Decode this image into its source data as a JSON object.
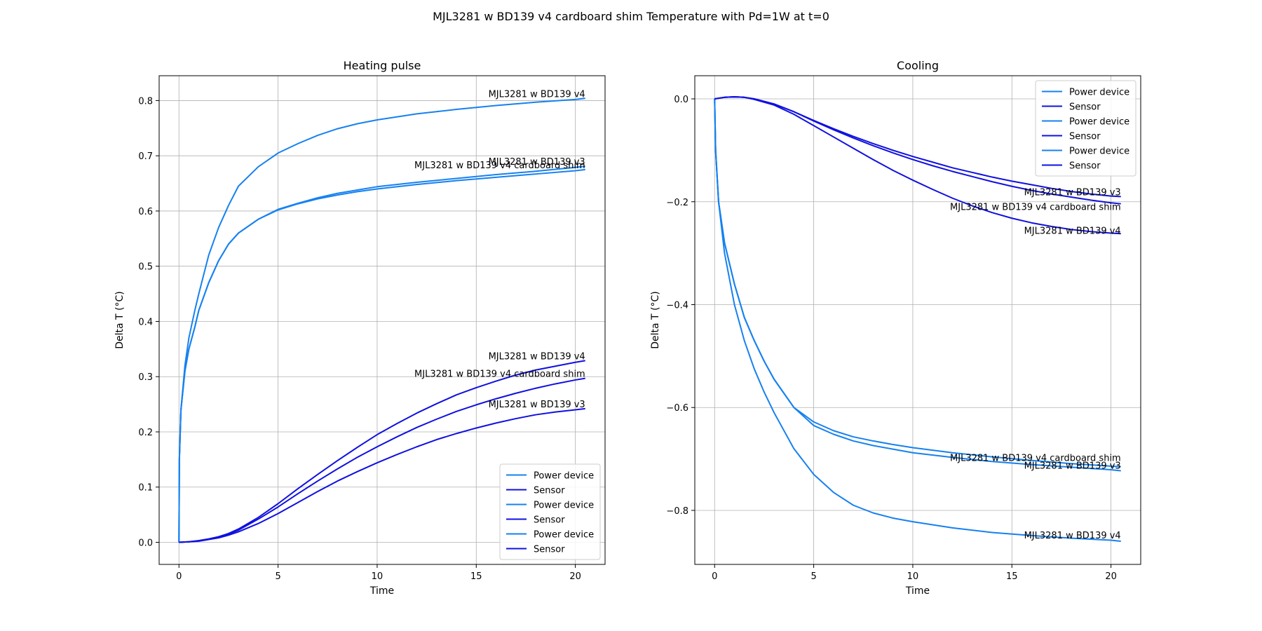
{
  "suptitle": "MJL3281 w BD139 v4 cardboard shim Temperature with Pd=1W at t=0",
  "colors": {
    "power_device": "#1681f0",
    "sensor": "#1010e0",
    "grid": "#b0b0b0"
  },
  "chart_data": [
    {
      "type": "line",
      "title": "Heating pulse",
      "xlabel": "Time",
      "ylabel": "Delta T (°C)",
      "xlim": [
        -1.0,
        21.5
      ],
      "ylim": [
        -0.04,
        0.845
      ],
      "xticks": [
        0,
        5,
        10,
        15,
        20
      ],
      "yticks": [
        0.0,
        0.1,
        0.2,
        0.3,
        0.4,
        0.5,
        0.6,
        0.7,
        0.8
      ],
      "ytick_labels": [
        "0.0",
        "0.1",
        "0.2",
        "0.3",
        "0.4",
        "0.5",
        "0.6",
        "0.7",
        "0.8"
      ],
      "grid": true,
      "legend": {
        "placement": "lower-right",
        "entries": [
          {
            "label": "Power device",
            "role": "power_device"
          },
          {
            "label": "Sensor",
            "role": "sensor"
          },
          {
            "label": "Power device",
            "role": "power_device"
          },
          {
            "label": "Sensor",
            "role": "sensor"
          },
          {
            "label": "Power device",
            "role": "power_device"
          },
          {
            "label": "Sensor",
            "role": "sensor"
          }
        ]
      },
      "series": [
        {
          "role": "power_device",
          "x": [
            0,
            0.02,
            0.1,
            0.3,
            0.5,
            0.8,
            1,
            1.5,
            2,
            2.5,
            3,
            4,
            5,
            6,
            7,
            8,
            9,
            10,
            12,
            14,
            16,
            18,
            20,
            20.5
          ],
          "y": [
            0,
            0.15,
            0.24,
            0.32,
            0.37,
            0.42,
            0.45,
            0.52,
            0.57,
            0.61,
            0.645,
            0.68,
            0.705,
            0.722,
            0.737,
            0.749,
            0.758,
            0.765,
            0.776,
            0.784,
            0.791,
            0.797,
            0.802,
            0.804
          ]
        },
        {
          "role": "power_device",
          "x": [
            0,
            0.02,
            0.1,
            0.3,
            0.5,
            0.8,
            1,
            1.5,
            2,
            2.5,
            3,
            4,
            5,
            6,
            7,
            8,
            9,
            10,
            12,
            14,
            16,
            18,
            20,
            20.5
          ],
          "y": [
            0,
            0.15,
            0.24,
            0.31,
            0.35,
            0.39,
            0.42,
            0.47,
            0.51,
            0.54,
            0.56,
            0.585,
            0.603,
            0.614,
            0.624,
            0.632,
            0.638,
            0.644,
            0.652,
            0.659,
            0.666,
            0.672,
            0.679,
            0.681
          ]
        },
        {
          "role": "power_device",
          "x": [
            0,
            0.02,
            0.1,
            0.3,
            0.5,
            0.8,
            1,
            1.5,
            2,
            2.5,
            3,
            4,
            5,
            6,
            7,
            8,
            9,
            10,
            12,
            14,
            16,
            18,
            20,
            20.5
          ],
          "y": [
            0,
            0.15,
            0.24,
            0.31,
            0.35,
            0.39,
            0.42,
            0.47,
            0.51,
            0.54,
            0.56,
            0.585,
            0.602,
            0.613,
            0.622,
            0.629,
            0.635,
            0.64,
            0.648,
            0.655,
            0.661,
            0.667,
            0.673,
            0.675
          ]
        },
        {
          "role": "sensor",
          "x": [
            0,
            0.5,
            1,
            1.5,
            2,
            2.5,
            3,
            4,
            5,
            6,
            7,
            8,
            9,
            10,
            11,
            12,
            13,
            14,
            15,
            16,
            17,
            18,
            19,
            20,
            20.5
          ],
          "y": [
            0,
            0.001,
            0.003,
            0.006,
            0.01,
            0.016,
            0.024,
            0.045,
            0.07,
            0.097,
            0.123,
            0.148,
            0.172,
            0.195,
            0.215,
            0.234,
            0.251,
            0.267,
            0.28,
            0.292,
            0.303,
            0.312,
            0.319,
            0.326,
            0.329
          ]
        },
        {
          "role": "sensor",
          "x": [
            0,
            0.5,
            1,
            1.5,
            2,
            2.5,
            3,
            4,
            5,
            6,
            7,
            8,
            9,
            10,
            11,
            12,
            13,
            14,
            15,
            16,
            17,
            18,
            19,
            20,
            20.5
          ],
          "y": [
            0,
            0.001,
            0.003,
            0.006,
            0.01,
            0.015,
            0.022,
            0.042,
            0.064,
            0.088,
            0.111,
            0.133,
            0.154,
            0.173,
            0.191,
            0.208,
            0.223,
            0.237,
            0.249,
            0.26,
            0.27,
            0.279,
            0.287,
            0.294,
            0.297
          ]
        },
        {
          "role": "sensor",
          "x": [
            0,
            0.5,
            1,
            1.5,
            2,
            2.5,
            3,
            4,
            5,
            6,
            7,
            8,
            9,
            10,
            11,
            12,
            13,
            14,
            15,
            16,
            17,
            18,
            19,
            20,
            20.5
          ],
          "y": [
            0,
            0.001,
            0.002,
            0.005,
            0.008,
            0.013,
            0.019,
            0.034,
            0.052,
            0.072,
            0.092,
            0.111,
            0.128,
            0.144,
            0.159,
            0.173,
            0.186,
            0.197,
            0.207,
            0.216,
            0.224,
            0.231,
            0.236,
            0.24,
            0.242
          ]
        }
      ],
      "annotations": [
        {
          "text": "MJL3281 w BD139 v4",
          "x": 20.5,
          "y": 0.804
        },
        {
          "text": "MJL3281 w BD139 v3",
          "x": 20.5,
          "y": 0.681
        },
        {
          "text": "MJL3281 w BD139 v4 cardboard shim",
          "x": 20.5,
          "y": 0.675
        },
        {
          "text": "MJL3281 w BD139 v4",
          "x": 20.5,
          "y": 0.329
        },
        {
          "text": "MJL3281 w BD139 v4 cardboard shim",
          "x": 20.5,
          "y": 0.297
        },
        {
          "text": "MJL3281 w BD139 v3",
          "x": 20.5,
          "y": 0.242
        }
      ]
    },
    {
      "type": "line",
      "title": "Cooling",
      "xlabel": "Time",
      "ylabel": "Delta T (°C)",
      "xlim": [
        -1.0,
        21.5
      ],
      "ylim": [
        -0.905,
        0.045
      ],
      "xticks": [
        0,
        5,
        10,
        15,
        20
      ],
      "yticks": [
        0.0,
        -0.2,
        -0.4,
        -0.6,
        -0.8
      ],
      "ytick_labels": [
        "0.0",
        "−0.2",
        "−0.4",
        "−0.6",
        "−0.8"
      ],
      "grid": true,
      "legend": {
        "placement": "upper-right",
        "entries": [
          {
            "label": "Power device",
            "role": "power_device"
          },
          {
            "label": "Sensor",
            "role": "sensor"
          },
          {
            "label": "Power device",
            "role": "power_device"
          },
          {
            "label": "Sensor",
            "role": "sensor"
          },
          {
            "label": "Power device",
            "role": "power_device"
          },
          {
            "label": "Sensor",
            "role": "sensor"
          }
        ]
      },
      "series": [
        {
          "role": "power_device",
          "x": [
            0,
            0.05,
            0.2,
            0.5,
            1,
            1.5,
            2,
            2.5,
            3,
            4,
            5,
            6,
            7,
            8,
            9,
            10,
            12,
            14,
            16,
            18,
            20,
            20.5
          ],
          "y": [
            0,
            -0.1,
            -0.2,
            -0.3,
            -0.4,
            -0.47,
            -0.525,
            -0.57,
            -0.61,
            -0.68,
            -0.73,
            -0.765,
            -0.79,
            -0.805,
            -0.815,
            -0.822,
            -0.834,
            -0.843,
            -0.849,
            -0.854,
            -0.858,
            -0.86
          ]
        },
        {
          "role": "power_device",
          "x": [
            0,
            0.05,
            0.2,
            0.5,
            1,
            1.5,
            2,
            2.5,
            3,
            4,
            5,
            6,
            7,
            8,
            9,
            10,
            12,
            14,
            16,
            18,
            20,
            20.5
          ],
          "y": [
            0,
            -0.1,
            -0.2,
            -0.28,
            -0.36,
            -0.425,
            -0.47,
            -0.51,
            -0.545,
            -0.6,
            -0.628,
            -0.645,
            -0.657,
            -0.665,
            -0.672,
            -0.678,
            -0.688,
            -0.696,
            -0.703,
            -0.709,
            -0.714,
            -0.715
          ]
        },
        {
          "role": "power_device",
          "x": [
            0,
            0.05,
            0.2,
            0.5,
            1,
            1.5,
            2,
            2.5,
            3,
            4,
            5,
            6,
            7,
            8,
            9,
            10,
            12,
            14,
            16,
            18,
            20,
            20.5
          ],
          "y": [
            0,
            -0.1,
            -0.2,
            -0.28,
            -0.36,
            -0.425,
            -0.47,
            -0.51,
            -0.545,
            -0.6,
            -0.635,
            -0.652,
            -0.665,
            -0.674,
            -0.681,
            -0.688,
            -0.697,
            -0.705,
            -0.711,
            -0.716,
            -0.721,
            -0.723
          ]
        },
        {
          "role": "sensor",
          "x": [
            0,
            0.5,
            1,
            1.5,
            2,
            3,
            4,
            5,
            6,
            7,
            8,
            9,
            10,
            11,
            12,
            13,
            14,
            15,
            16,
            17,
            18,
            19,
            20,
            20.5
          ],
          "y": [
            0,
            0.003,
            0.004,
            0.003,
            -0.001,
            -0.012,
            -0.03,
            -0.052,
            -0.074,
            -0.096,
            -0.118,
            -0.139,
            -0.158,
            -0.176,
            -0.193,
            -0.208,
            -0.221,
            -0.232,
            -0.241,
            -0.248,
            -0.254,
            -0.258,
            -0.261,
            -0.262
          ]
        },
        {
          "role": "sensor",
          "x": [
            0,
            0.5,
            1,
            1.5,
            2,
            3,
            4,
            5,
            6,
            7,
            8,
            9,
            10,
            11,
            12,
            13,
            14,
            15,
            16,
            17,
            18,
            19,
            20,
            20.5
          ],
          "y": [
            0,
            0.003,
            0.004,
            0.003,
            0,
            -0.01,
            -0.025,
            -0.043,
            -0.06,
            -0.076,
            -0.091,
            -0.105,
            -0.118,
            -0.13,
            -0.141,
            -0.151,
            -0.161,
            -0.17,
            -0.178,
            -0.185,
            -0.191,
            -0.197,
            -0.202,
            -0.204
          ]
        },
        {
          "role": "sensor",
          "x": [
            0,
            0.5,
            1,
            1.5,
            2,
            3,
            4,
            5,
            6,
            7,
            8,
            9,
            10,
            11,
            12,
            13,
            14,
            15,
            16,
            17,
            18,
            19,
            20,
            20.5
          ],
          "y": [
            0,
            0.003,
            0.004,
            0.003,
            0,
            -0.01,
            -0.025,
            -0.042,
            -0.058,
            -0.073,
            -0.087,
            -0.1,
            -0.112,
            -0.123,
            -0.134,
            -0.143,
            -0.152,
            -0.16,
            -0.167,
            -0.174,
            -0.18,
            -0.185,
            -0.189,
            -0.19
          ]
        }
      ],
      "annotations": [
        {
          "text": "MJL3281 w BD139 v3",
          "x": 20.5,
          "y": -0.19
        },
        {
          "text": "MJL3281 w BD139 v4 cardboard shim",
          "x": 20.5,
          "y": -0.219
        },
        {
          "text": "MJL3281 w BD139 v4",
          "x": 20.5,
          "y": -0.265
        },
        {
          "text": "MJL3281 w BD139 v4 cardboard shim",
          "x": 20.5,
          "y": -0.707
        },
        {
          "text": "MJL3281 w BD139 v3",
          "x": 20.5,
          "y": -0.722
        },
        {
          "text": "MJL3281 w BD139 v4",
          "x": 20.5,
          "y": -0.857
        }
      ]
    }
  ]
}
